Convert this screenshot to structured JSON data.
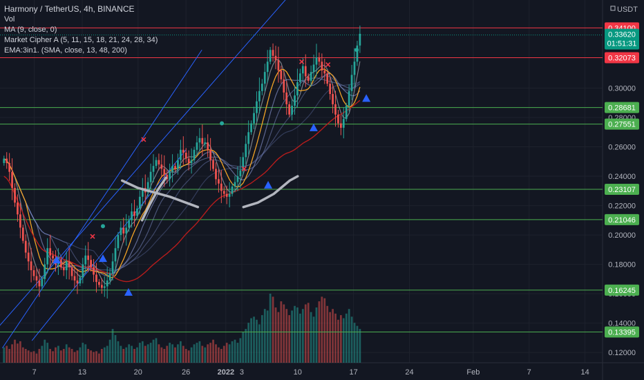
{
  "legend": {
    "title": "Harmony / TetherUS, 4h, BINANCE",
    "vol": "Vol",
    "ma": "MA (9, close, 0)",
    "cipher": "Market Cipher A (5, 11, 15, 18, 21, 24, 28, 34)",
    "ema": "EMA:3in1. (SMA, close, 13, 48, 200)"
  },
  "currency_label": "USDT",
  "colors": {
    "background": "#131722",
    "grid": "#1e222d",
    "up": "#26a69a",
    "down": "#ef5350",
    "support": "#4caf50",
    "resistance": "#f23645",
    "channel": "#2962ff",
    "price_tag": "#089981"
  },
  "chart_data": {
    "type": "candlestick",
    "symbol": "Harmony / TetherUS",
    "interval": "4h",
    "exchange": "BINANCE",
    "y_ticks": [
      0.12,
      0.14,
      0.16,
      0.18,
      0.2,
      0.22,
      0.24,
      0.26,
      0.28,
      0.3
    ],
    "y_tick_labels": [
      "0.12000",
      "0.14000",
      "0.16000",
      "0.18000",
      "0.20000",
      "0.22000",
      "0.24000",
      "0.26000",
      "0.28000",
      "0.30000"
    ],
    "ylim": [
      0.113,
      0.36
    ],
    "x_ticks": [
      "7",
      "13",
      "20",
      "26",
      "2022",
      "3",
      "10",
      "17",
      "24",
      "Feb",
      "7",
      "14"
    ],
    "x_tick_values": [
      0,
      6,
      13,
      19,
      24,
      26,
      33,
      40,
      47,
      55,
      62,
      69
    ],
    "xlim": [
      -4.3,
      71.2
    ],
    "current_price": "0.33620",
    "countdown": "01:51:31",
    "horizontal_levels": [
      {
        "label": "0.34100",
        "value": 0.341,
        "kind": "resistance"
      },
      {
        "label": "0.32073",
        "value": 0.32073,
        "kind": "resistance"
      },
      {
        "label": "0.28681",
        "value": 0.28681,
        "kind": "support"
      },
      {
        "label": "0.27551",
        "value": 0.27551,
        "kind": "support"
      },
      {
        "label": "0.23107",
        "value": 0.23107,
        "kind": "support"
      },
      {
        "label": "0.21046",
        "value": 0.21046,
        "kind": "support"
      },
      {
        "label": "0.16245",
        "value": 0.16245,
        "kind": "support"
      },
      {
        "label": "0.13395",
        "value": 0.13395,
        "kind": "support"
      }
    ],
    "channel_lines": [
      {
        "from": [
          -4.0,
          0.123
        ],
        "to": [
          21.0,
          0.326
        ]
      },
      {
        "from": [
          -0.3,
          0.128
        ],
        "to": [
          19.0,
          0.258
        ]
      },
      {
        "from": [
          -6.0,
          0.128
        ],
        "to": [
          43.4,
          0.434
        ]
      }
    ],
    "candles_close": [
      0.252,
      0.249,
      0.243,
      0.232,
      0.222,
      0.214,
      0.205,
      0.196,
      0.188,
      0.182,
      0.176,
      0.172,
      0.169,
      0.165,
      0.17,
      0.18,
      0.191,
      0.186,
      0.184,
      0.18,
      0.183,
      0.178,
      0.176,
      0.182,
      0.178,
      0.172,
      0.169,
      0.167,
      0.171,
      0.18,
      0.186,
      0.183,
      0.178,
      0.173,
      0.168,
      0.166,
      0.164,
      0.165,
      0.169,
      0.174,
      0.182,
      0.191,
      0.2,
      0.205,
      0.201,
      0.205,
      0.21,
      0.216,
      0.213,
      0.218,
      0.226,
      0.232,
      0.229,
      0.236,
      0.243,
      0.247,
      0.251,
      0.248,
      0.245,
      0.241,
      0.238,
      0.243,
      0.247,
      0.245,
      0.251,
      0.258,
      0.256,
      0.252,
      0.249,
      0.251,
      0.258,
      0.263,
      0.266,
      0.262,
      0.263,
      0.258,
      0.251,
      0.245,
      0.238,
      0.235,
      0.23,
      0.228,
      0.226,
      0.228,
      0.233,
      0.236,
      0.24,
      0.244,
      0.253,
      0.262,
      0.27,
      0.276,
      0.283,
      0.291,
      0.298,
      0.303,
      0.311,
      0.318,
      0.326,
      0.322,
      0.319,
      0.312,
      0.306,
      0.297,
      0.289,
      0.282,
      0.288,
      0.295,
      0.304,
      0.31,
      0.315,
      0.308,
      0.305,
      0.311,
      0.316,
      0.321,
      0.318,
      0.312,
      0.31,
      0.303,
      0.296,
      0.289,
      0.282,
      0.276,
      0.273,
      0.279,
      0.288,
      0.298,
      0.309,
      0.318,
      0.329,
      0.337
    ],
    "volumes": [
      20,
      22,
      18,
      24,
      30,
      25,
      28,
      20,
      18,
      16,
      14,
      15,
      12,
      18,
      22,
      30,
      26,
      18,
      15,
      20,
      22,
      16,
      18,
      24,
      20,
      18,
      14,
      16,
      20,
      26,
      24,
      18,
      16,
      14,
      15,
      12,
      18,
      20,
      22,
      30,
      44,
      36,
      28,
      22,
      18,
      20,
      24,
      22,
      18,
      20,
      26,
      28,
      22,
      24,
      26,
      30,
      32,
      24,
      20,
      18,
      22,
      26,
      24,
      20,
      24,
      28,
      22,
      18,
      16,
      20,
      24,
      26,
      28,
      22,
      20,
      24,
      26,
      30,
      24,
      20,
      18,
      22,
      26,
      24,
      28,
      30,
      26,
      32,
      40,
      44,
      52,
      58,
      60,
      56,
      50,
      62,
      70,
      68,
      90,
      86,
      72,
      66,
      80,
      76,
      70,
      62,
      68,
      74,
      72,
      64,
      70,
      76,
      78,
      66,
      60,
      72,
      80,
      86,
      84,
      74,
      66,
      70,
      64,
      56,
      62,
      58,
      64,
      70,
      60,
      52,
      48,
      44
    ],
    "markers": [
      {
        "kind": "triangle-up",
        "x": 2.8,
        "y": 0.183
      },
      {
        "kind": "triangle-up",
        "x": 8.6,
        "y": 0.184
      },
      {
        "kind": "triangle-up",
        "x": 11.8,
        "y": 0.161
      },
      {
        "kind": "triangle-up",
        "x": 29.3,
        "y": 0.234
      },
      {
        "kind": "triangle-up",
        "x": 35.0,
        "y": 0.273
      },
      {
        "kind": "triangle-up",
        "x": 41.6,
        "y": 0.293
      },
      {
        "kind": "x",
        "x": 7.3,
        "y": 0.199
      },
      {
        "kind": "x",
        "x": 13.7,
        "y": 0.265
      },
      {
        "kind": "x",
        "x": 26.3,
        "y": 0.245
      },
      {
        "kind": "x",
        "x": 33.5,
        "y": 0.318
      },
      {
        "kind": "x",
        "x": 36.8,
        "y": 0.316
      },
      {
        "kind": "dot",
        "x": 8.6,
        "y": 0.206
      },
      {
        "kind": "dot",
        "x": 23.5,
        "y": 0.276
      },
      {
        "kind": "dot",
        "x": 40.4,
        "y": 0.326
      }
    ]
  }
}
